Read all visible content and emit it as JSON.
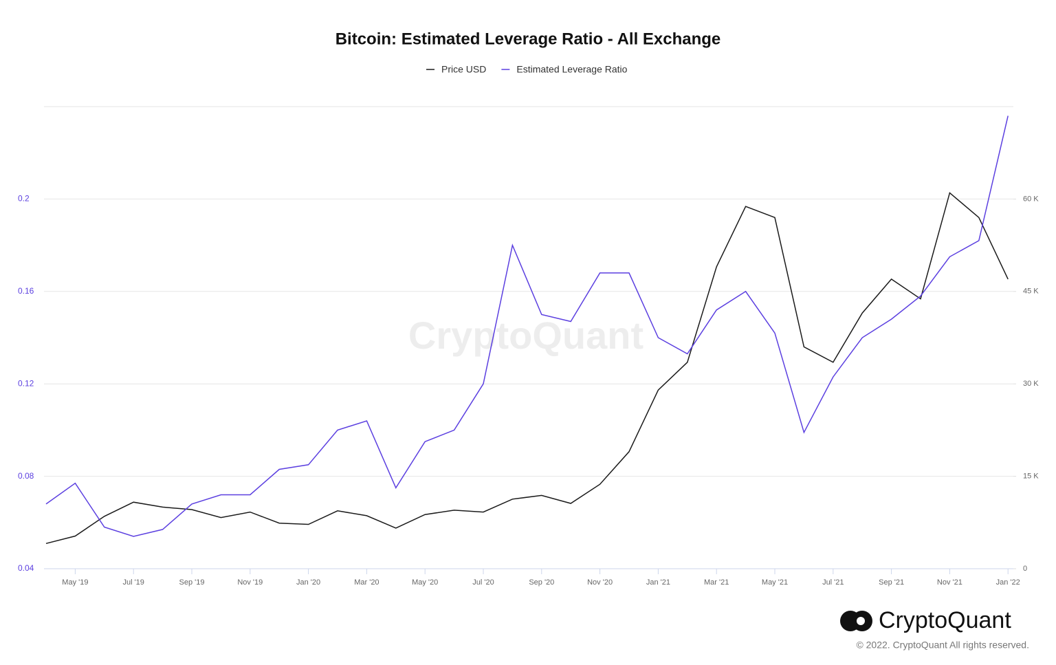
{
  "chart_data": {
    "type": "line",
    "title": "Bitcoin: Estimated Leverage Ratio - All Exchange",
    "watermark": "CryptoQuant",
    "brand": "CryptoQuant",
    "copyright": "© 2022. CryptoQuant All rights reserved.",
    "x": [
      "2019-04",
      "2019-05",
      "2019-06",
      "2019-07",
      "2019-08",
      "2019-09",
      "2019-10",
      "2019-11",
      "2019-12",
      "2020-01",
      "2020-02",
      "2020-03",
      "2020-04",
      "2020-05",
      "2020-06",
      "2020-07",
      "2020-08",
      "2020-09",
      "2020-10",
      "2020-11",
      "2020-12",
      "2021-01",
      "2021-02",
      "2021-03",
      "2021-04",
      "2021-05",
      "2021-06",
      "2021-07",
      "2021-08",
      "2021-09",
      "2021-10",
      "2021-11",
      "2021-12",
      "2022-01"
    ],
    "xticks": [
      {
        "value": "2019-05",
        "label": "May '19"
      },
      {
        "value": "2019-07",
        "label": "Jul '19"
      },
      {
        "value": "2019-09",
        "label": "Sep '19"
      },
      {
        "value": "2019-11",
        "label": "Nov '19"
      },
      {
        "value": "2020-01",
        "label": "Jan '20"
      },
      {
        "value": "2020-03",
        "label": "Mar '20"
      },
      {
        "value": "2020-05",
        "label": "May '20"
      },
      {
        "value": "2020-07",
        "label": "Jul '20"
      },
      {
        "value": "2020-09",
        "label": "Sep '20"
      },
      {
        "value": "2020-11",
        "label": "Nov '20"
      },
      {
        "value": "2021-01",
        "label": "Jan '21"
      },
      {
        "value": "2021-03",
        "label": "Mar '21"
      },
      {
        "value": "2021-05",
        "label": "May '21"
      },
      {
        "value": "2021-07",
        "label": "Jul '21"
      },
      {
        "value": "2021-09",
        "label": "Sep '21"
      },
      {
        "value": "2021-11",
        "label": "Nov '21"
      },
      {
        "value": "2022-01",
        "label": "Jan '22"
      }
    ],
    "series": [
      {
        "name": "Price USD",
        "color": "#1a1a1a",
        "axis": "y2",
        "values": [
          4100,
          5300,
          8500,
          10800,
          10000,
          9600,
          8300,
          9200,
          7400,
          7200,
          9400,
          8600,
          6600,
          8800,
          9500,
          9200,
          11300,
          11900,
          10600,
          13700,
          19000,
          29000,
          33500,
          49000,
          58800,
          57000,
          36000,
          33500,
          41500,
          47000,
          43800,
          61000,
          57000,
          47000
        ]
      },
      {
        "name": "Estimated Leverage Ratio",
        "color": "#5b3fe0",
        "axis": "y",
        "values": [
          0.068,
          0.077,
          0.058,
          0.054,
          0.057,
          0.068,
          0.072,
          0.072,
          0.083,
          0.085,
          0.1,
          0.104,
          0.075,
          0.095,
          0.1,
          0.12,
          0.18,
          0.15,
          0.147,
          0.168,
          0.168,
          0.14,
          0.133,
          0.152,
          0.16,
          0.142,
          0.099,
          0.123,
          0.14,
          0.148,
          0.158,
          0.175,
          0.182,
          0.236
        ]
      }
    ],
    "ylim": [
      0.04,
      0.24
    ],
    "yticks": [
      0.04,
      0.08,
      0.12,
      0.16,
      0.2
    ],
    "y2lim": [
      0,
      75000
    ],
    "y2ticks": [
      0,
      {
        "value": 15000,
        "label": "15 K"
      },
      {
        "value": 30000,
        "label": "30 K"
      },
      {
        "value": 45000,
        "label": "45 K"
      },
      {
        "value": 60000,
        "label": "60 K"
      }
    ],
    "grid": true,
    "legend": "top",
    "ytick_color": "#5b3fe0"
  }
}
